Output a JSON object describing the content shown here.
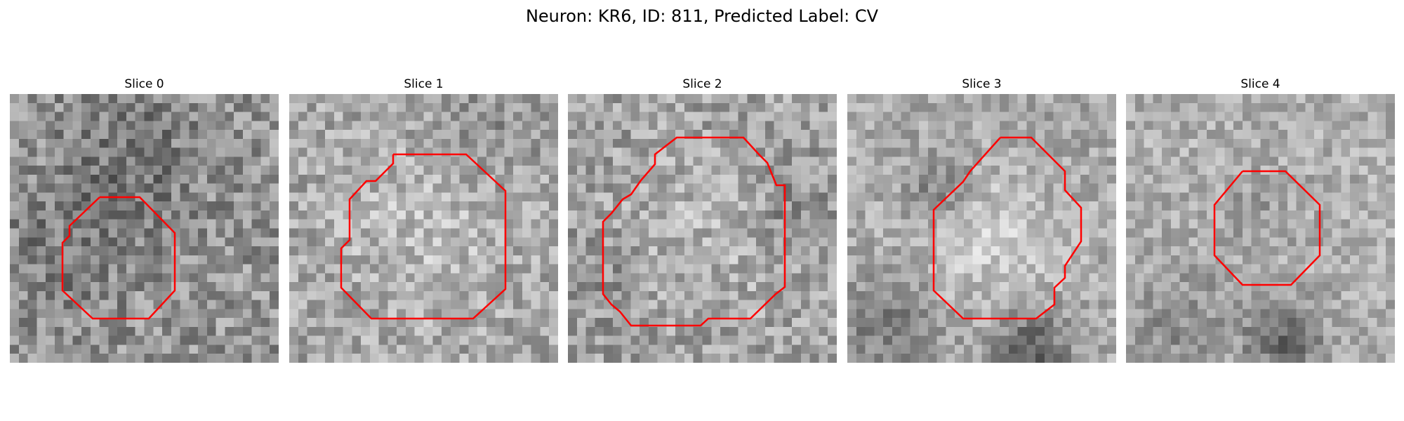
{
  "title": "Neuron: KR6, ID: 811, Predicted Label: CV",
  "outline_color": "#ff0000",
  "slices": [
    {
      "label": "Slice 0"
    },
    {
      "label": "Slice 1"
    },
    {
      "label": "Slice 2"
    },
    {
      "label": "Slice 3"
    },
    {
      "label": "Slice 4"
    }
  ]
}
